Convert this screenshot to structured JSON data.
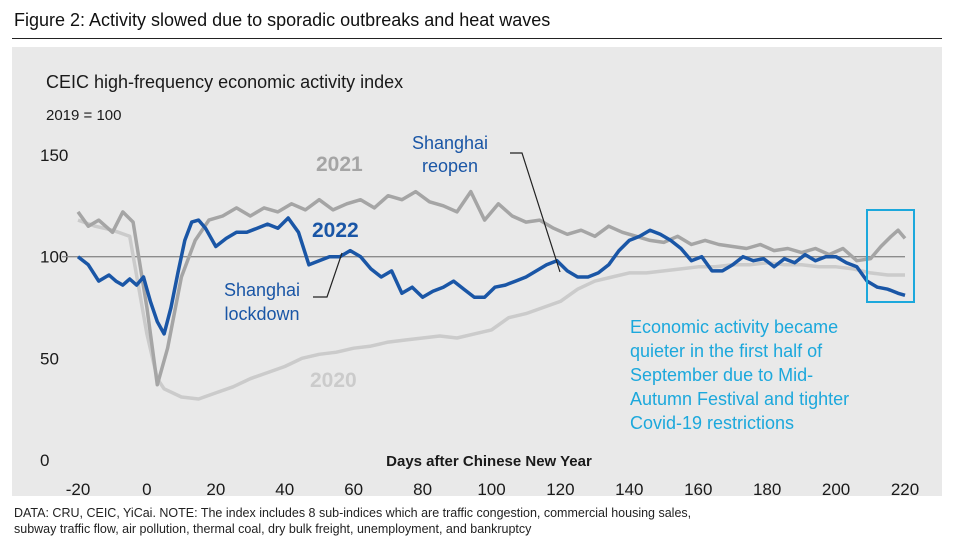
{
  "figure_title": "Figure 2: Activity slowed due to sporadic outbreaks and heat waves",
  "source_note": {
    "line1": "DATA: CRU, CEIC, YiCai. NOTE: The index includes 8 sub-indices which are traffic congestion, commercial housing sales,",
    "line2": "subway traffic flow, air pollution, thermal coal, dry bulk freight, unemployment, and bankruptcy"
  },
  "colors": {
    "s2022": "#1a56a6",
    "s2021": "#a5a5a5",
    "s2020": "#cbcbcb",
    "highlight": "#1ca8dc",
    "ref_line": "#8c8c8c"
  },
  "chart_data": {
    "type": "line",
    "title": "CEIC high-frequency economic activity index",
    "subtitle": "2019 = 100",
    "xlabel": "Days after Chinese New Year",
    "ylabel": "",
    "xlim": [
      -21,
      221
    ],
    "ylim": [
      0,
      150
    ],
    "xticks": [
      -20,
      0,
      20,
      40,
      60,
      80,
      100,
      120,
      140,
      160,
      180,
      200,
      220
    ],
    "yticks": [
      0,
      50,
      100,
      150
    ],
    "reference_line": 100,
    "grid": false,
    "series": [
      {
        "name": "2020",
        "label": "2020",
        "x": [
          -20,
          -15,
          -10,
          -5,
          0,
          3,
          5,
          10,
          15,
          20,
          25,
          30,
          35,
          40,
          45,
          50,
          55,
          60,
          65,
          70,
          75,
          80,
          85,
          90,
          95,
          100,
          105,
          110,
          115,
          120,
          125,
          130,
          135,
          140,
          145,
          150,
          155,
          160,
          165,
          170,
          175,
          180,
          185,
          190,
          195,
          200,
          205,
          210,
          215,
          220
        ],
        "y": [
          118,
          115,
          113,
          110,
          62,
          40,
          35,
          31,
          30,
          33,
          36,
          40,
          43,
          46,
          50,
          52,
          53,
          55,
          56,
          58,
          59,
          60,
          61,
          60,
          62,
          64,
          70,
          72,
          75,
          78,
          84,
          88,
          90,
          92,
          92,
          93,
          94,
          95,
          95,
          96,
          96,
          97,
          96,
          96,
          95,
          95,
          94,
          92,
          91,
          91
        ]
      },
      {
        "name": "2021",
        "label": "2021",
        "x": [
          -20,
          -17,
          -14,
          -10,
          -7,
          -4,
          0,
          3,
          6,
          10,
          14,
          18,
          22,
          26,
          30,
          34,
          38,
          42,
          46,
          50,
          54,
          58,
          62,
          66,
          70,
          74,
          78,
          82,
          86,
          90,
          94,
          98,
          102,
          106,
          110,
          114,
          118,
          122,
          126,
          130,
          134,
          138,
          142,
          146,
          150,
          154,
          158,
          162,
          166,
          170,
          174,
          178,
          182,
          186,
          190,
          194,
          198,
          202,
          206,
          210,
          213,
          216,
          218,
          220
        ],
        "y": [
          122,
          115,
          118,
          112,
          122,
          117,
          75,
          37,
          55,
          90,
          108,
          118,
          120,
          124,
          120,
          124,
          122,
          126,
          123,
          128,
          123,
          126,
          128,
          124,
          130,
          128,
          132,
          127,
          125,
          122,
          132,
          118,
          126,
          120,
          117,
          118,
          114,
          111,
          113,
          110,
          115,
          112,
          110,
          108,
          107,
          110,
          106,
          108,
          106,
          105,
          104,
          106,
          103,
          104,
          102,
          104,
          101,
          104,
          98,
          99,
          105,
          110,
          113,
          109
        ]
      },
      {
        "name": "2022",
        "label": "2022",
        "x": [
          -20,
          -17,
          -14,
          -11,
          -9,
          -7,
          -5,
          -3,
          -1,
          0,
          1,
          3,
          5,
          7,
          9,
          11,
          13,
          15,
          17,
          20,
          23,
          26,
          29,
          32,
          35,
          38,
          41,
          44,
          47,
          50,
          53,
          56,
          59,
          62,
          65,
          68,
          71,
          74,
          77,
          80,
          83,
          86,
          89,
          92,
          95,
          98,
          101,
          104,
          107,
          110,
          113,
          116,
          119,
          122,
          125,
          128,
          131,
          134,
          137,
          140,
          143,
          146,
          149,
          152,
          155,
          158,
          161,
          164,
          167,
          170,
          173,
          176,
          179,
          182,
          185,
          188,
          191,
          194,
          197,
          200,
          203,
          206,
          209,
          212,
          215,
          218,
          220
        ],
        "y": [
          100,
          96,
          88,
          91,
          88,
          86,
          89,
          86,
          90,
          84,
          78,
          68,
          62,
          75,
          92,
          108,
          117,
          118,
          114,
          105,
          109,
          112,
          112,
          114,
          116,
          114,
          119,
          112,
          96,
          98,
          100,
          100,
          103,
          100,
          94,
          90,
          93,
          82,
          85,
          80,
          83,
          85,
          88,
          84,
          80,
          80,
          85,
          86,
          88,
          90,
          93,
          96,
          98,
          93,
          90,
          90,
          92,
          96,
          103,
          108,
          110,
          113,
          111,
          108,
          104,
          98,
          100,
          93,
          93,
          96,
          100,
          98,
          99,
          95,
          99,
          97,
          101,
          98,
          100,
          100,
          97,
          95,
          88,
          85,
          84,
          82,
          81
        ]
      }
    ],
    "annotations": {
      "shanghai_reopen": {
        "line1": "Shanghai",
        "line2": "reopen"
      },
      "shanghai_lockdown": {
        "line1": "Shanghai",
        "line2": "lockdown"
      },
      "highlight_note": {
        "line1": "Economic activity became",
        "line2": "quieter in the first half of",
        "line3": "September due to Mid-",
        "line4": "Autumn Festival and tighter",
        "line5": "Covid-19 restrictions"
      }
    }
  }
}
